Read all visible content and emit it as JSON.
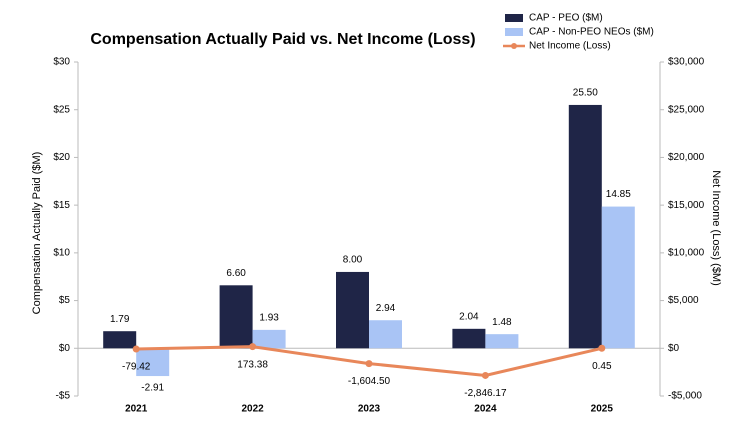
{
  "chart_data": {
    "type": "bar_line",
    "title": "Compensation Actually Paid vs. Net Income (Loss)",
    "y_label": "Compensation Actually Paid ($M)",
    "y2_label": "Net Income (Loss) ($M)",
    "categories": [
      "2021",
      "2022",
      "2023",
      "2024",
      "2025"
    ],
    "series": [
      {
        "name": "CAP - PEO ($M)",
        "type": "bar",
        "color": "#1f2547",
        "values": [
          1.79,
          6.6,
          8.0,
          2.04,
          25.5
        ],
        "value_labels": [
          "1.79",
          "6.60",
          "8.00",
          "2.04",
          "25.50"
        ]
      },
      {
        "name": "CAP - Non-PEO NEOs ($M)",
        "type": "bar",
        "color": "#a9c4f5",
        "values": [
          -2.91,
          1.93,
          2.94,
          1.48,
          14.85
        ],
        "value_labels": [
          "-2.91",
          "1.93",
          "2.94",
          "1.48",
          "14.85"
        ]
      },
      {
        "name": "Net Income (Loss)",
        "type": "line",
        "axis": "y2",
        "color": "#e8875a",
        "values": [
          -79.42,
          173.38,
          -1604.5,
          -2846.17,
          0.45
        ],
        "value_labels": [
          "-79.42",
          "173.38",
          "-1,604.50",
          "-2,846.17",
          "0.45"
        ]
      }
    ],
    "ylim": [
      -5,
      30
    ],
    "yticks": [
      {
        "value": -5,
        "label": "-$5"
      },
      {
        "value": 0,
        "label": "$0"
      },
      {
        "value": 5,
        "label": "$5"
      },
      {
        "value": 10,
        "label": "$10"
      },
      {
        "value": 15,
        "label": "$15"
      },
      {
        "value": 20,
        "label": "$20"
      },
      {
        "value": 25,
        "label": "$25"
      },
      {
        "value": 30,
        "label": "$30"
      }
    ],
    "y2lim": [
      -5000,
      30000
    ],
    "y2ticks": [
      {
        "value": -5000,
        "label": "-$5,000"
      },
      {
        "value": 0,
        "label": "$0"
      },
      {
        "value": 5000,
        "label": "$5,000"
      },
      {
        "value": 10000,
        "label": "$10,000"
      },
      {
        "value": 15000,
        "label": "$15,000"
      },
      {
        "value": 20000,
        "label": "$20,000"
      },
      {
        "value": 25000,
        "label": "$25,000"
      },
      {
        "value": 30000,
        "label": "$30,000"
      }
    ],
    "grid": false,
    "legend": "top-right"
  }
}
